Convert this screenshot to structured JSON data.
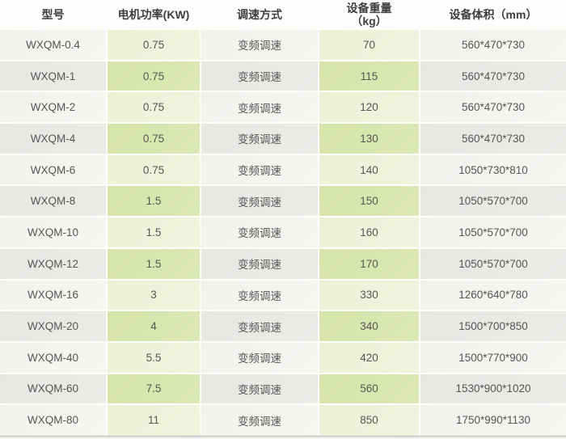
{
  "table": {
    "columns": [
      {
        "label": "型号"
      },
      {
        "label": "电机功率(KW)"
      },
      {
        "label": "调速方式"
      },
      {
        "label": "设备重量",
        "label2": "（kg）"
      },
      {
        "label": "设备体积（mm）"
      }
    ],
    "rows": [
      [
        "WXQM-0.4",
        "0.75",
        "变频调速",
        "70",
        "560*470*730"
      ],
      [
        "WXQM-1",
        "0.75",
        "变频调速",
        "115",
        "560*470*730"
      ],
      [
        "WXQM-2",
        "0.75",
        "变频调速",
        "120",
        "560*470*730"
      ],
      [
        "WXQM-4",
        "0.75",
        "变频调速",
        "130",
        "560*470*730"
      ],
      [
        "WXQM-6",
        "0.75",
        "变频调速",
        "140",
        "1050*730*810"
      ],
      [
        "WXQM-8",
        "1.5",
        "变频调速",
        "150",
        "1050*570*700"
      ],
      [
        "WXQM-10",
        "1.5",
        "变频调速",
        "160",
        "1050*570*700"
      ],
      [
        "WXQM-12",
        "1.5",
        "变频调速",
        "170",
        "1050*570*700"
      ],
      [
        "WXQM-16",
        "3",
        "变频调速",
        "330",
        "1260*640*780"
      ],
      [
        "WXQM-20",
        "4",
        "变频调速",
        "340",
        "1500*700*850"
      ],
      [
        "WXQM-40",
        "5.5",
        "变频调速",
        "420",
        "1500*770*900"
      ],
      [
        "WXQM-60",
        "7.5",
        "变频调速",
        "560",
        "1530*900*1020"
      ],
      [
        "WXQM-80",
        "11",
        "变频调速",
        "850",
        "1750*990*1130"
      ]
    ],
    "colors": {
      "row_odd_plain": "#f4f4f1",
      "row_odd_green": "#eef2d9",
      "row_even_plain": "#e9e9e6",
      "row_even_green": "#d9e5ae",
      "header_text": "#3e3e3e",
      "body_text": "#565656",
      "bottom_line": "#c9c9c6"
    }
  }
}
